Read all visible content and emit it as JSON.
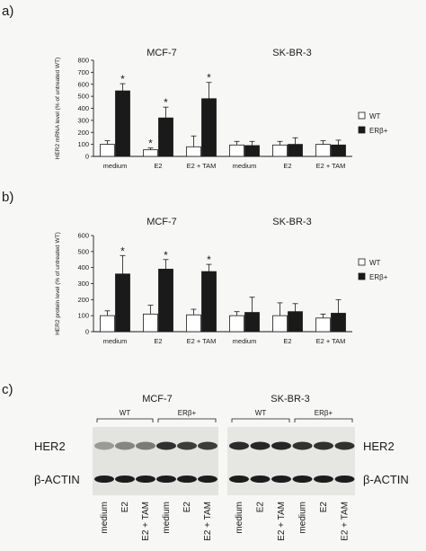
{
  "panels": {
    "a": {
      "label": "a)"
    },
    "b": {
      "label": "b)"
    },
    "c": {
      "label": "c)"
    }
  },
  "legend": {
    "items": [
      {
        "label": "WT",
        "color": "#ffffff"
      },
      {
        "label": "ERβ+",
        "color": "#1a1a1a"
      }
    ]
  },
  "chart_data": [
    {
      "panel": "a",
      "type": "bar",
      "group_titles": [
        "MCF-7",
        "SK-BR-3"
      ],
      "categories": [
        "medium",
        "E2",
        "E2 + TAM",
        "medium",
        "E2",
        "E2 + TAM"
      ],
      "ylabel": "HER2 mRNA level (% of untreated WT)",
      "ylim": [
        0,
        800
      ],
      "yticks": [
        0,
        100,
        200,
        300,
        400,
        500,
        600,
        700,
        800
      ],
      "series": [
        {
          "name": "WT",
          "color": "#ffffff",
          "values": [
            100,
            55,
            80,
            95,
            95,
            100
          ],
          "errors": [
            30,
            15,
            90,
            30,
            30,
            30
          ],
          "significant": [
            false,
            true,
            false,
            false,
            false,
            false
          ]
        },
        {
          "name": "ERβ+",
          "color": "#1a1a1a",
          "values": [
            545,
            320,
            480,
            90,
            100,
            95
          ],
          "errors": [
            60,
            90,
            135,
            35,
            55,
            40
          ],
          "significant": [
            true,
            true,
            true,
            false,
            false,
            false
          ]
        }
      ]
    },
    {
      "panel": "b",
      "type": "bar",
      "group_titles": [
        "MCF-7",
        "SK-BR-3"
      ],
      "categories": [
        "medium",
        "E2",
        "E2 + TAM",
        "medium",
        "E2",
        "E2 + TAM"
      ],
      "ylabel": "HER2 protein level (% of untreated WT)",
      "ylim": [
        0,
        600
      ],
      "yticks": [
        0,
        100,
        200,
        300,
        400,
        500,
        600
      ],
      "series": [
        {
          "name": "WT",
          "color": "#ffffff",
          "values": [
            100,
            110,
            105,
            100,
            100,
            85
          ],
          "errors": [
            30,
            55,
            35,
            25,
            80,
            25
          ],
          "significant": [
            false,
            false,
            false,
            false,
            false,
            false
          ]
        },
        {
          "name": "ERβ+",
          "color": "#1a1a1a",
          "values": [
            360,
            390,
            375,
            120,
            125,
            115
          ],
          "errors": [
            115,
            60,
            45,
            95,
            50,
            85
          ],
          "significant": [
            true,
            true,
            true,
            false,
            false,
            false
          ]
        }
      ]
    }
  ],
  "blot": {
    "cell_lines": [
      "MCF-7",
      "SK-BR-3"
    ],
    "groups": [
      "WT",
      "ERβ+",
      "WT",
      "ERβ+"
    ],
    "rows": [
      "HER2",
      "β-ACTIN"
    ],
    "lanes": [
      "medium",
      "E2",
      "E2 + TAM",
      "medium",
      "E2",
      "E2 + TAM",
      "medium",
      "E2",
      "E2 + TAM",
      "medium",
      "E2",
      "E2 + TAM"
    ]
  }
}
